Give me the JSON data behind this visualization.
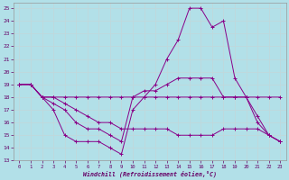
{
  "xlabel": "Windchill (Refroidissement éolien,°C)",
  "background_color": "#b2e0e8",
  "grid_color": "#aaaaaa",
  "line_color": "#880088",
  "xlim": [
    -0.5,
    23.5
  ],
  "ylim": [
    13,
    25.4
  ],
  "yticks": [
    13,
    14,
    15,
    16,
    17,
    18,
    19,
    20,
    21,
    22,
    23,
    24,
    25
  ],
  "xticks": [
    0,
    1,
    2,
    3,
    4,
    5,
    6,
    7,
    8,
    9,
    10,
    11,
    12,
    13,
    14,
    15,
    16,
    17,
    18,
    19,
    20,
    21,
    22,
    23
  ],
  "series": [
    {
      "x": [
        0,
        1,
        2,
        3,
        4,
        5,
        6,
        7,
        8,
        9,
        10,
        11,
        12,
        13,
        14,
        15,
        16,
        17,
        18,
        19,
        20,
        21,
        22,
        23
      ],
      "y": [
        19,
        19,
        18,
        17,
        15,
        14.5,
        14.5,
        14.5,
        14,
        13.5,
        17,
        18,
        19,
        21,
        22.5,
        25,
        25,
        23.5,
        24,
        19.5,
        18,
        16,
        15,
        14.5
      ]
    },
    {
      "x": [
        0,
        1,
        2,
        3,
        4,
        5,
        6,
        7,
        8,
        9,
        10,
        11,
        12,
        13,
        14,
        15,
        16,
        17,
        18,
        19,
        20,
        21,
        22,
        23
      ],
      "y": [
        19,
        19,
        18,
        17.5,
        17,
        16,
        15.5,
        15.5,
        15,
        14.5,
        18,
        18.5,
        18.5,
        19,
        19.5,
        19.5,
        19.5,
        19.5,
        18,
        18,
        18,
        16.5,
        15,
        14.5
      ]
    },
    {
      "x": [
        0,
        1,
        2,
        3,
        4,
        5,
        6,
        7,
        8,
        9,
        10,
        11,
        12,
        13,
        14,
        15,
        16,
        17,
        18,
        19,
        20,
        21,
        22,
        23
      ],
      "y": [
        19,
        19,
        18,
        18,
        18,
        18,
        18,
        18,
        18,
        18,
        18,
        18,
        18,
        18,
        18,
        18,
        18,
        18,
        18,
        18,
        18,
        18,
        18,
        18
      ]
    },
    {
      "x": [
        0,
        1,
        2,
        3,
        4,
        5,
        6,
        7,
        8,
        9,
        10,
        11,
        12,
        13,
        14,
        15,
        16,
        17,
        18,
        19,
        20,
        21,
        22,
        23
      ],
      "y": [
        19,
        19,
        18,
        18,
        17.5,
        17,
        16.5,
        16,
        16,
        15.5,
        15.5,
        15.5,
        15.5,
        15.5,
        15,
        15,
        15,
        15,
        15.5,
        15.5,
        15.5,
        15.5,
        15,
        14.5
      ]
    }
  ]
}
